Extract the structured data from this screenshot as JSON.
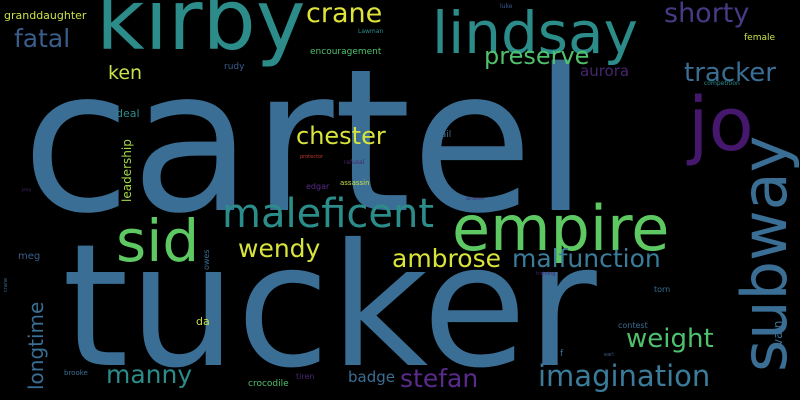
{
  "background": "#000000",
  "words": [
    {
      "text": "cartel",
      "color": "#3a6e94",
      "vertical": false
    },
    {
      "text": "tucker",
      "color": "#3a6e94",
      "vertical": false
    },
    {
      "text": "kirby",
      "color": "#2c8c8a",
      "vertical": false
    },
    {
      "text": "lindsay",
      "color": "#2c8c8a",
      "vertical": false
    },
    {
      "text": "empire",
      "color": "#5ec962",
      "vertical": false
    },
    {
      "text": "sid",
      "color": "#5ec962",
      "vertical": false
    },
    {
      "text": "subway",
      "color": "#3a6e94",
      "vertical": true
    },
    {
      "text": "maleficent",
      "color": "#2c8c8a",
      "vertical": false
    },
    {
      "text": "jo",
      "color": "#45176d",
      "vertical": false
    },
    {
      "text": "crane",
      "color": "#e0e33a",
      "vertical": false
    },
    {
      "text": "shorty",
      "color": "#463b85",
      "vertical": false
    },
    {
      "text": "fatal",
      "color": "#3a5e8c",
      "vertical": false
    },
    {
      "text": "preserve",
      "color": "#4fc06c",
      "vertical": false
    },
    {
      "text": "tracker",
      "color": "#3a6e94",
      "vertical": false
    },
    {
      "text": "ken",
      "color": "#c8e04a",
      "vertical": false
    },
    {
      "text": "aurora",
      "color": "#46266e",
      "vertical": false
    },
    {
      "text": "chester",
      "color": "#d8e43c",
      "vertical": false
    },
    {
      "text": "wendy",
      "color": "#d8e43c",
      "vertical": false
    },
    {
      "text": "ambrose",
      "color": "#d8e43c",
      "vertical": false
    },
    {
      "text": "malfunction",
      "color": "#3a7c9a",
      "vertical": false
    },
    {
      "text": "weight",
      "color": "#4fc06c",
      "vertical": false
    },
    {
      "text": "manny",
      "color": "#2c8c8a",
      "vertical": false
    },
    {
      "text": "stefan",
      "color": "#5a2a8c",
      "vertical": false
    },
    {
      "text": "imagination",
      "color": "#3a7c9a",
      "vertical": false
    },
    {
      "text": "longtime",
      "color": "#3a6e94",
      "vertical": true
    },
    {
      "text": "leadership",
      "color": "#a6d94a",
      "vertical": true
    },
    {
      "text": "badge",
      "color": "#3a6e94",
      "vertical": false
    },
    {
      "text": "vain",
      "color": "#3a6e94",
      "vertical": true
    },
    {
      "text": "granddaughter",
      "color": "#c8e04a",
      "vertical": false
    },
    {
      "text": "encouragement",
      "color": "#4fc06c",
      "vertical": false
    },
    {
      "text": "female",
      "color": "#c8e04a",
      "vertical": false
    },
    {
      "text": "rudy",
      "color": "#3a5e8c",
      "vertical": false
    },
    {
      "text": "deal",
      "color": "#2c8c8a",
      "vertical": false
    },
    {
      "text": "mail",
      "color": "#3a6e94",
      "vertical": false
    },
    {
      "text": "devoured",
      "color": "#3a6e94",
      "vertical": false
    },
    {
      "text": "competition",
      "color": "#2c8c8a",
      "vertical": false
    },
    {
      "text": "luke",
      "color": "#3a5e8c",
      "vertical": false
    },
    {
      "text": "Lawman",
      "color": "#2c8c8a",
      "vertical": false
    },
    {
      "text": "protector",
      "color": "#c0392b",
      "vertical": false
    },
    {
      "text": "refusal",
      "color": "#46266e",
      "vertical": false
    },
    {
      "text": "edgar",
      "color": "#5a2a8c",
      "vertical": false
    },
    {
      "text": "assassin",
      "color": "#c8e04a",
      "vertical": false
    },
    {
      "text": "meg",
      "color": "#3a5e8c",
      "vertical": false
    },
    {
      "text": "owes",
      "color": "#3a6e94",
      "vertical": true
    },
    {
      "text": "da",
      "color": "#c8e04a",
      "vertical": false
    },
    {
      "text": "torn",
      "color": "#3a6e94",
      "vertical": false
    },
    {
      "text": "contest",
      "color": "#3a6e94",
      "vertical": false
    },
    {
      "text": "crocodile",
      "color": "#4fc06c",
      "vertical": false
    },
    {
      "text": "brooke",
      "color": "#3a6e94",
      "vertical": false
    },
    {
      "text": "tiren",
      "color": "#46266e",
      "vertical": false
    },
    {
      "text": "f",
      "color": "#3a6e94",
      "vertical": false
    },
    {
      "text": "earl",
      "color": "#3a5e8c",
      "vertical": false
    },
    {
      "text": "jerry",
      "color": "#46266e",
      "vertical": false
    },
    {
      "text": "crane",
      "color": "#3a6e94",
      "vertical": true
    },
    {
      "text": "winsome",
      "color": "#46266e",
      "vertical": false
    },
    {
      "text": "training",
      "color": "#46266e",
      "vertical": false
    }
  ]
}
